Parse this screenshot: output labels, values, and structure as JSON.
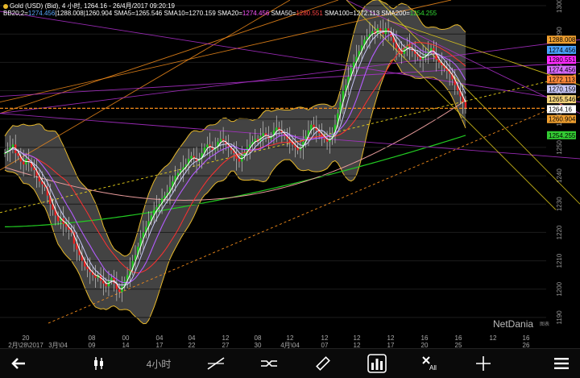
{
  "header": {
    "line1": "Gold (USD) (Bid), 4 小时, 1264.16 - 26/4月/2017 09:20:19",
    "indicators": [
      {
        "text": "BB20;2=",
        "color": "#ffffff"
      },
      {
        "text": "1274.456",
        "color": "#5aa8ff"
      },
      {
        "text": "|",
        "color": "#ffffff"
      },
      {
        "text": "1288.008",
        "color": "#ffffff"
      },
      {
        "text": "|",
        "color": "#ffffff"
      },
      {
        "text": "1260.904",
        "color": "#ffffff"
      },
      {
        "text": " SMA5=",
        "color": "#ffffff"
      },
      {
        "text": "1265.546",
        "color": "#ffffff"
      },
      {
        "text": " SMA10=",
        "color": "#ffffff"
      },
      {
        "text": "1270.159",
        "color": "#ffffff"
      },
      {
        "text": " SMA20=",
        "color": "#ffffff"
      },
      {
        "text": "1274.456",
        "color": "#ff55ff"
      },
      {
        "text": " SMA50=",
        "color": "#ffffff"
      },
      {
        "text": "1280.551",
        "color": "#ff4444"
      },
      {
        "text": " SMA100=",
        "color": "#ffffff"
      },
      {
        "text": "1272.113",
        "color": "#ffffff"
      },
      {
        "text": " SMA200=",
        "color": "#ffffff"
      },
      {
        "text": "1254.255",
        "color": "#33dd33"
      }
    ]
  },
  "chart_data": {
    "type": "candlestick",
    "symbol": "Gold (USD) (Bid)",
    "ylim": [
      1186,
      1302
    ],
    "y_ticks": [
      1190,
      1200,
      1210,
      1220,
      1230,
      1240,
      1250,
      1260,
      1270,
      1280,
      1290,
      1300
    ],
    "x_ticks": [
      {
        "top": "20",
        "bottom": "2月\\28\\2017"
      },
      {
        "top": "",
        "bottom": "3月\\04"
      },
      {
        "top": "08",
        "bottom": "09"
      },
      {
        "top": "00",
        "bottom": "14"
      },
      {
        "top": "04",
        "bottom": "17"
      },
      {
        "top": "04",
        "bottom": "22"
      },
      {
        "top": "12",
        "bottom": "27"
      },
      {
        "top": "08",
        "bottom": "30"
      },
      {
        "top": "12",
        "bottom": "4月\\04"
      },
      {
        "top": "12",
        "bottom": "07"
      },
      {
        "top": "12",
        "bottom": "12"
      },
      {
        "top": "12",
        "bottom": "17"
      },
      {
        "top": "16",
        "bottom": "20"
      },
      {
        "top": "16",
        "bottom": "25"
      },
      {
        "top": "12",
        "bottom": ""
      },
      {
        "top": "16",
        "bottom": "26"
      }
    ],
    "close_path": [
      1248,
      1249,
      1250,
      1251,
      1248,
      1247,
      1245,
      1244,
      1246,
      1245,
      1243,
      1242,
      1240,
      1238,
      1237,
      1236,
      1233,
      1230,
      1228,
      1226,
      1224,
      1225,
      1223,
      1222,
      1221,
      1220,
      1216,
      1214,
      1212,
      1210,
      1208,
      1207,
      1206,
      1205,
      1204,
      1205,
      1203,
      1202,
      1201,
      1203,
      1204,
      1202,
      1200,
      1199,
      1201,
      1203,
      1205,
      1207,
      1210,
      1212,
      1215,
      1218,
      1220,
      1222,
      1224,
      1226,
      1228,
      1229,
      1230,
      1232,
      1233,
      1234,
      1236,
      1238,
      1240,
      1241,
      1242,
      1243,
      1244,
      1246,
      1247,
      1246,
      1245,
      1246,
      1248,
      1250,
      1251,
      1250,
      1249,
      1250,
      1252,
      1253,
      1252,
      1251,
      1250,
      1249,
      1248,
      1246,
      1245,
      1247,
      1248,
      1250,
      1251,
      1252,
      1253,
      1252,
      1254,
      1255,
      1254,
      1253,
      1254,
      1256,
      1257,
      1256,
      1255,
      1254,
      1253,
      1252,
      1251,
      1250,
      1249,
      1250,
      1252,
      1254,
      1256,
      1258,
      1257,
      1256,
      1255,
      1254,
      1253,
      1252,
      1253,
      1255,
      1258,
      1262,
      1266,
      1270,
      1272,
      1275,
      1278,
      1280,
      1282,
      1284,
      1286,
      1288,
      1289,
      1290,
      1291,
      1290,
      1292,
      1291,
      1290,
      1292,
      1291,
      1289,
      1287,
      1285,
      1284,
      1283,
      1285,
      1286,
      1285,
      1284,
      1283,
      1282,
      1281,
      1282,
      1283,
      1284,
      1285,
      1283,
      1281,
      1280,
      1279,
      1278,
      1277,
      1276,
      1274,
      1272,
      1270,
      1268,
      1266,
      1264
    ],
    "sma5_last": 1265.546,
    "sma10_last": 1270.159,
    "sma20_last": 1274.456,
    "sma50_last": 1280.551,
    "sma100_last": 1272.113,
    "sma200_last": 1254.255,
    "bb_upper_last": 1288.008,
    "bb_lower_last": 1260.904,
    "last_price": 1264.16,
    "price_tags": [
      {
        "value": 1288.008,
        "label": "1288.008",
        "bg": "#f0a030",
        "fg": "#000000",
        "y": 1288.0
      },
      {
        "value": 1274.456,
        "label": "1274.456",
        "bg": "#4aa3ff",
        "fg": "#000000",
        "y": 1284.4
      },
      {
        "value": 1280.551,
        "label": "1280.551",
        "bg": "#ff2aff",
        "fg": "#000000",
        "y": 1280.9
      },
      {
        "value": 1274.456,
        "label": "1274.456",
        "bg": "#d86bff",
        "fg": "#000000",
        "y": 1277.4
      },
      {
        "value": 1272.113,
        "label": "1272.113",
        "bg": "#ff8a3a",
        "fg": "#000000",
        "y": 1274.0
      },
      {
        "value": 1270.159,
        "label": "1270.159",
        "bg": "#c8c8f8",
        "fg": "#000000",
        "y": 1270.6
      },
      {
        "value": 1265.546,
        "label": "1265.546",
        "bg": "#f2d27a",
        "fg": "#000000",
        "y": 1267.0
      },
      {
        "value": 1264.16,
        "label": "1264.16",
        "bg": "#ffffff",
        "fg": "#000000",
        "y": 1263.5
      },
      {
        "value": 1260.904,
        "label": "1260.904",
        "bg": "#f0a030",
        "fg": "#000000",
        "y": 1260.0
      },
      {
        "value": 1254.255,
        "label": "1254.255",
        "bg": "#33cc33",
        "fg": "#000000",
        "y": 1254.3
      }
    ]
  },
  "watermark": {
    "brand": "NetDania",
    "sub": "图表"
  },
  "toolbar": {
    "timeframe_label": "4小时",
    "items": [
      {
        "name": "back-arrow-icon",
        "interactable": true
      },
      {
        "name": "candlestick-type-icon",
        "interactable": true
      },
      {
        "name": "timeframe-button",
        "interactable": true
      },
      {
        "name": "trendline-tool-icon",
        "interactable": true
      },
      {
        "name": "compare-tool-icon",
        "interactable": true
      },
      {
        "name": "ruler-tool-icon",
        "interactable": true
      },
      {
        "name": "indicators-icon",
        "interactable": true
      },
      {
        "name": "clear-all-icon",
        "interactable": true
      },
      {
        "name": "crosshair-icon",
        "interactable": true
      },
      {
        "name": "menu-icon",
        "interactable": true
      }
    ]
  },
  "colors": {
    "background": "#000000",
    "bb_fill": "#5a5a5a",
    "bb_edge": "#e8b92b",
    "sma5": "#ffffff",
    "sma10": "#c8c8f8",
    "sma20": "#b45cff",
    "sma50": "#ff3030",
    "sma100": "#e89b9b",
    "sma200": "#22cc22",
    "trend_orange": "#f08a1a",
    "trend_yellow": "#e8d11a",
    "trend_purple": "#b030d0",
    "up_candle": "#22cc22",
    "down_candle": "#ee2222"
  }
}
